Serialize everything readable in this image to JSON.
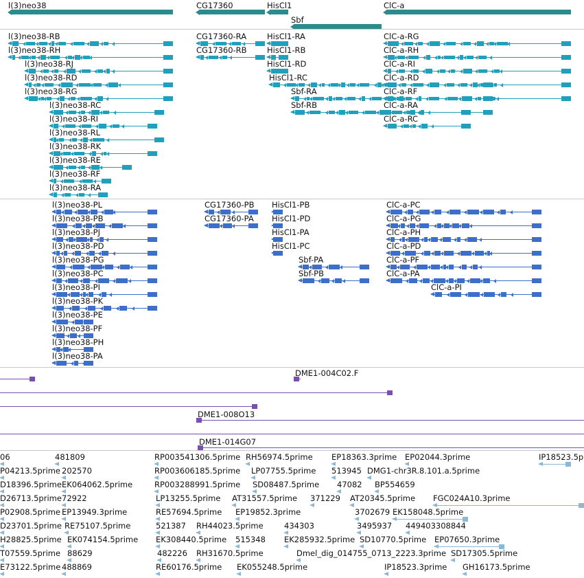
{
  "colors": {
    "gene": "#2b8c8e",
    "transcript_rna": "#21a0bd",
    "transcript_pep": "#3c6fc9",
    "clone": "#7b4fb1",
    "est": "#8ab9d6"
  },
  "genes": [
    {
      "label": "l(3)neo38",
      "x0": 12,
      "x1": 252,
      "strand": "-"
    },
    {
      "label": "CG17360",
      "x0": 286,
      "x1": 386,
      "strand": "-"
    },
    {
      "label": "HisCl1",
      "x0": 389,
      "x1": 420,
      "strand": "-"
    },
    {
      "label": "ClC-a",
      "x0": 559,
      "x1": 832,
      "strand": "-"
    },
    {
      "label": "Sbf",
      "x0": 424,
      "x1": 556,
      "strand": "-",
      "row": 1
    }
  ],
  "rna": [
    {
      "label": "l(3)neo38-RB",
      "x0": 12,
      "x1": 252,
      "row": 0
    },
    {
      "label": "l(3)neo38-RH",
      "x0": 12,
      "x1": 252,
      "row": 1
    },
    {
      "label": "l(3)neo38-RJ",
      "x0": 36,
      "x1": 252,
      "row": 2
    },
    {
      "label": "l(3)neo38-RD",
      "x0": 36,
      "x1": 252,
      "row": 3
    },
    {
      "label": "l(3)neo38-RG",
      "x0": 36,
      "x1": 252,
      "row": 4
    },
    {
      "label": "l(3)neo38-RC",
      "x0": 72,
      "x1": 239,
      "row": 5
    },
    {
      "label": "l(3)neo38-RI",
      "x0": 72,
      "x1": 229,
      "row": 6
    },
    {
      "label": "l(3)neo38-RL",
      "x0": 72,
      "x1": 239,
      "row": 7
    },
    {
      "label": "l(3)neo38-RK",
      "x0": 72,
      "x1": 229,
      "row": 8
    },
    {
      "label": "l(3)neo38-RE",
      "x0": 72,
      "x1": 192,
      "row": 9
    },
    {
      "label": "l(3)neo38-RF",
      "x0": 72,
      "x1": 162,
      "row": 10
    },
    {
      "label": "l(3)neo38-RA",
      "x0": 72,
      "x1": 157,
      "row": 11
    },
    {
      "label": "CG17360-RA",
      "x0": 286,
      "x1": 386,
      "row": 0
    },
    {
      "label": "CG17360-RB",
      "x0": 286,
      "x1": 386,
      "row": 1
    },
    {
      "label": "HisCl1-RA",
      "x0": 389,
      "x1": 420,
      "row": 0
    },
    {
      "label": "HisCl1-RB",
      "x0": 389,
      "x1": 420,
      "row": 1
    },
    {
      "label": "HisCl1-RD",
      "x0": 389,
      "x1": 420,
      "row": 2
    },
    {
      "label": "HisCl1-RC",
      "x0": 392,
      "x1": 718,
      "row": 3
    },
    {
      "label": "Sbf-RA",
      "x0": 424,
      "x1": 718,
      "row": 4
    },
    {
      "label": "Sbf-RB",
      "x0": 424,
      "x1": 718,
      "row": 5
    },
    {
      "label": "ClC-a-RG",
      "x0": 559,
      "x1": 832,
      "row": 0
    },
    {
      "label": "ClC-a-RH",
      "x0": 559,
      "x1": 832,
      "row": 1
    },
    {
      "label": "ClC-a-RI",
      "x0": 559,
      "x1": 832,
      "row": 2
    },
    {
      "label": "ClC-a-RD",
      "x0": 559,
      "x1": 832,
      "row": 3
    },
    {
      "label": "ClC-a-RF",
      "x0": 559,
      "x1": 832,
      "row": 4
    },
    {
      "label": "ClC-a-RA",
      "x0": 559,
      "x1": 686,
      "row": 5
    },
    {
      "label": "ClC-a-RC",
      "x0": 559,
      "x1": 686,
      "row": 6
    }
  ],
  "pep": [
    {
      "label": "l(3)neo38-PL",
      "x0": 76,
      "x1": 229,
      "row": 0
    },
    {
      "label": "l(3)neo38-PB",
      "x0": 76,
      "x1": 229,
      "row": 1
    },
    {
      "label": "l(3)neo38-PJ",
      "x0": 76,
      "x1": 229,
      "row": 2
    },
    {
      "label": "l(3)neo38-PD",
      "x0": 76,
      "x1": 229,
      "row": 3
    },
    {
      "label": "l(3)neo38-PG",
      "x0": 76,
      "x1": 229,
      "row": 4
    },
    {
      "label": "l(3)neo38-PC",
      "x0": 76,
      "x1": 229,
      "row": 5
    },
    {
      "label": "l(3)neo38-PI",
      "x0": 76,
      "x1": 229,
      "row": 6
    },
    {
      "label": "l(3)neo38-PK",
      "x0": 76,
      "x1": 229,
      "row": 7
    },
    {
      "label": "l(3)neo38-PE",
      "x0": 76,
      "x1": 136,
      "row": 8
    },
    {
      "label": "l(3)neo38-PF",
      "x0": 76,
      "x1": 136,
      "row": 9
    },
    {
      "label": "l(3)neo38-PH",
      "x0": 76,
      "x1": 136,
      "row": 10
    },
    {
      "label": "l(3)neo38-PA",
      "x0": 76,
      "x1": 136,
      "row": 11
    },
    {
      "label": "CG17360-PB",
      "x0": 298,
      "x1": 376,
      "row": 0
    },
    {
      "label": "CG17360-PA",
      "x0": 298,
      "x1": 376,
      "row": 1
    },
    {
      "label": "HisCl1-PB",
      "x0": 396,
      "x1": 412,
      "row": 0
    },
    {
      "label": "HisCl1-PD",
      "x0": 396,
      "x1": 412,
      "row": 1
    },
    {
      "label": "HisCl1-PA",
      "x0": 396,
      "x1": 412,
      "row": 2
    },
    {
      "label": "HisCl1-PC",
      "x0": 396,
      "x1": 412,
      "row": 3
    },
    {
      "label": "Sbf-PA",
      "x0": 435,
      "x1": 538,
      "row": 4
    },
    {
      "label": "Sbf-PB",
      "x0": 435,
      "x1": 538,
      "row": 5
    },
    {
      "label": "ClC-a-PC",
      "x0": 563,
      "x1": 789,
      "row": 0
    },
    {
      "label": "ClC-a-PG",
      "x0": 563,
      "x1": 789,
      "row": 1
    },
    {
      "label": "ClC-a-PH",
      "x0": 563,
      "x1": 789,
      "row": 2
    },
    {
      "label": "ClC-a-PD",
      "x0": 563,
      "x1": 789,
      "row": 3
    },
    {
      "label": "ClC-a-PF",
      "x0": 563,
      "x1": 789,
      "row": 4
    },
    {
      "label": "ClC-a-PA",
      "x0": 563,
      "x1": 789,
      "row": 5
    },
    {
      "label": "ClC-a-PI",
      "x0": 628,
      "x1": 789,
      "row": 6
    }
  ],
  "clones": [
    {
      "label": "",
      "x0": 0,
      "x1": 51,
      "row": 0,
      "end": "right"
    },
    {
      "label": "DME1-004C02.F",
      "x0": 428,
      "x1": 438,
      "row": 0,
      "end": "left"
    },
    {
      "label": "",
      "x0": 0,
      "x1": 572,
      "row": 1,
      "end": "right"
    },
    {
      "label": "",
      "x0": 0,
      "x1": 375,
      "row": 2,
      "end": "right"
    },
    {
      "label": "DME1-008O13",
      "x0": 286,
      "x1": 851,
      "row": 3,
      "end": "left"
    },
    {
      "label": "",
      "x0": 0,
      "x1": 851,
      "row": 4,
      "end": "none"
    },
    {
      "label": "DME1-014G07",
      "x0": 288,
      "x1": 851,
      "row": 5,
      "end": "left"
    }
  ],
  "ests": [
    {
      "label": "06",
      "x0": 0,
      "x1": 6,
      "row": 0
    },
    {
      "label": "481809",
      "x0": 80,
      "x1": 88,
      "row": 0
    },
    {
      "label": "RP003541306.5prime",
      "x0": 225,
      "x1": 234,
      "row": 0
    },
    {
      "label": "RH56974.5prime",
      "x0": 358,
      "x1": 367,
      "row": 0
    },
    {
      "label": "EP18363.3prime",
      "x0": 483,
      "x1": 492,
      "row": 0
    },
    {
      "label": "EP02044.3prime",
      "x0": 590,
      "x1": 600,
      "row": 0
    },
    {
      "label": "IP18523.5p",
      "x0": 785,
      "x1": 832,
      "row": 0
    },
    {
      "label": "P04213.5prime",
      "x0": 0,
      "x1": 8,
      "row": 1
    },
    {
      "label": "202570",
      "x0": 90,
      "x1": 100,
      "row": 1
    },
    {
      "label": "RP003606185.5prime",
      "x0": 225,
      "x1": 234,
      "row": 1
    },
    {
      "label": "LP07755.5prime",
      "x0": 366,
      "x1": 376,
      "row": 1
    },
    {
      "label": "513945",
      "x0": 483,
      "x1": 493,
      "row": 1
    },
    {
      "label": "DMG1-chr3R.8.101.a.5prime",
      "x0": 535,
      "x1": 545,
      "row": 1
    },
    {
      "label": "D18396.5prime",
      "x0": 0,
      "x1": 8,
      "row": 2
    },
    {
      "label": "EK064062.5prime",
      "x0": 90,
      "x1": 100,
      "row": 2
    },
    {
      "label": "RP003288991.5prime",
      "x0": 225,
      "x1": 234,
      "row": 2
    },
    {
      "label": "SD08487.5prime",
      "x0": 368,
      "x1": 378,
      "row": 2
    },
    {
      "label": "47082",
      "x0": 491,
      "x1": 500,
      "row": 2
    },
    {
      "label": "BP554659",
      "x0": 546,
      "x1": 556,
      "row": 2
    },
    {
      "label": "D26713.5prime",
      "x0": 0,
      "x1": 8,
      "row": 3
    },
    {
      "label": "72922",
      "x0": 90,
      "x1": 100,
      "row": 3
    },
    {
      "label": "LP13255.5prime",
      "x0": 227,
      "x1": 236,
      "row": 3
    },
    {
      "label": "AT31557.5prime",
      "x0": 338,
      "x1": 346,
      "row": 3
    },
    {
      "label": "371229",
      "x0": 452,
      "x1": 462,
      "row": 3
    },
    {
      "label": "AT20345.5prime",
      "x0": 510,
      "x1": 519,
      "row": 3
    },
    {
      "label": "FGC024A10.3prime",
      "x0": 631,
      "x1": 851,
      "row": 3
    },
    {
      "label": "P02908.5prime",
      "x0": 0,
      "x1": 8,
      "row": 4
    },
    {
      "label": "EP13949.3prime",
      "x0": 90,
      "x1": 100,
      "row": 4
    },
    {
      "label": "RE57694.5prime",
      "x0": 227,
      "x1": 236,
      "row": 4
    },
    {
      "label": "EP19852.3prime",
      "x0": 343,
      "x1": 352,
      "row": 4
    },
    {
      "label": "3702679",
      "x0": 517,
      "x1": 527,
      "row": 4
    },
    {
      "label": "EK158048.5prime",
      "x0": 572,
      "x1": 682,
      "row": 4
    },
    {
      "label": "D23701.5prime",
      "x0": 0,
      "x1": 8,
      "row": 5
    },
    {
      "label": "RE75107.5prime",
      "x0": 94,
      "x1": 104,
      "row": 5
    },
    {
      "label": "521387",
      "x0": 227,
      "x1": 237,
      "row": 5
    },
    {
      "label": "RH44023.5prime",
      "x0": 286,
      "x1": 296,
      "row": 5
    },
    {
      "label": "434303",
      "x0": 414,
      "x1": 423,
      "row": 5
    },
    {
      "label": "3495937",
      "x0": 520,
      "x1": 530,
      "row": 5
    },
    {
      "label": "449403308844",
      "x0": 591,
      "x1": 601,
      "row": 5
    },
    {
      "label": "H28825.5prime",
      "x0": 0,
      "x1": 8,
      "row": 6
    },
    {
      "label": "EK074154.5prime",
      "x0": 98,
      "x1": 108,
      "row": 6
    },
    {
      "label": "EK308440.5prime",
      "x0": 227,
      "x1": 237,
      "row": 6
    },
    {
      "label": "515348",
      "x0": 343,
      "x1": 353,
      "row": 6
    },
    {
      "label": "EK285932.5prime",
      "x0": 414,
      "x1": 424,
      "row": 6
    },
    {
      "label": "SD10770.5prime",
      "x0": 524,
      "x1": 534,
      "row": 6
    },
    {
      "label": "EP07650.3prime",
      "x0": 633,
      "x1": 735,
      "row": 6
    },
    {
      "label": "T07559.5prime",
      "x0": 0,
      "x1": 8,
      "row": 7
    },
    {
      "label": "88629",
      "x0": 98,
      "x1": 108,
      "row": 7
    },
    {
      "label": "482226",
      "x0": 229,
      "x1": 239,
      "row": 7
    },
    {
      "label": "RH31670.5prime",
      "x0": 286,
      "x1": 296,
      "row": 7
    },
    {
      "label": "Dmel_dig_014755_0713_2223.3prime",
      "x0": 432,
      "x1": 442,
      "row": 7
    },
    {
      "label": "SD17305.5prime",
      "x0": 657,
      "x1": 667,
      "row": 7
    },
    {
      "label": "E73122.5prime",
      "x0": 0,
      "x1": 8,
      "row": 8
    },
    {
      "label": "488869",
      "x0": 90,
      "x1": 100,
      "row": 8
    },
    {
      "label": "RE60176.5prime",
      "x0": 227,
      "x1": 237,
      "row": 8
    },
    {
      "label": "EK055248.5prime",
      "x0": 345,
      "x1": 355,
      "row": 8
    },
    {
      "label": "IP18523.3prime",
      "x0": 560,
      "x1": 570,
      "row": 8
    },
    {
      "label": "GH16173.5prime",
      "x0": 674,
      "x1": 684,
      "row": 8
    }
  ]
}
